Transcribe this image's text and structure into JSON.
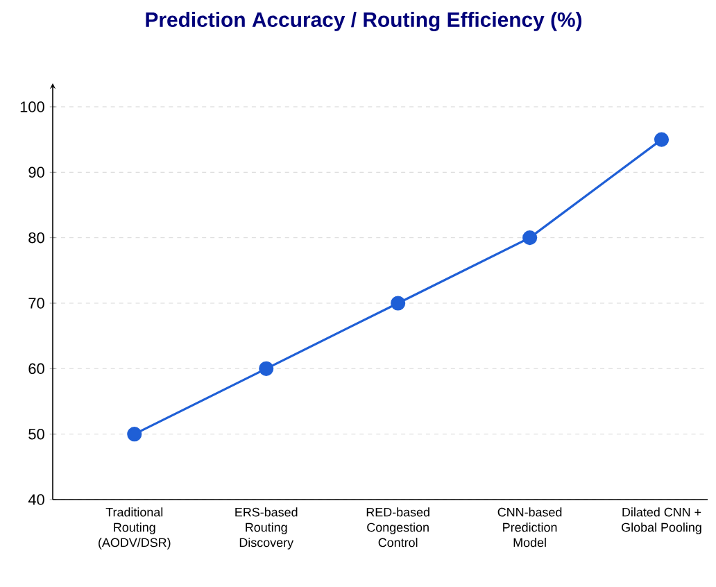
{
  "chart_data": {
    "type": "line",
    "title": "Prediction Accuracy / Routing Efficiency (%)",
    "categories": [
      "Traditional Routing (AODV/DSR)",
      "ERS-based Routing Discovery",
      "RED-based Congestion Control",
      "CNN-based Prediction Model",
      "Dilated CNN + Global Pooling"
    ],
    "series": [
      {
        "color": "#1f5fd6",
        "values": [
          50,
          60,
          70,
          80,
          95
        ]
      }
    ],
    "ylim": [
      40,
      100
    ],
    "yticks": [
      40,
      50,
      60,
      70,
      80,
      90,
      100
    ],
    "grid": "y",
    "marker": "circle",
    "line_style": "solid"
  }
}
